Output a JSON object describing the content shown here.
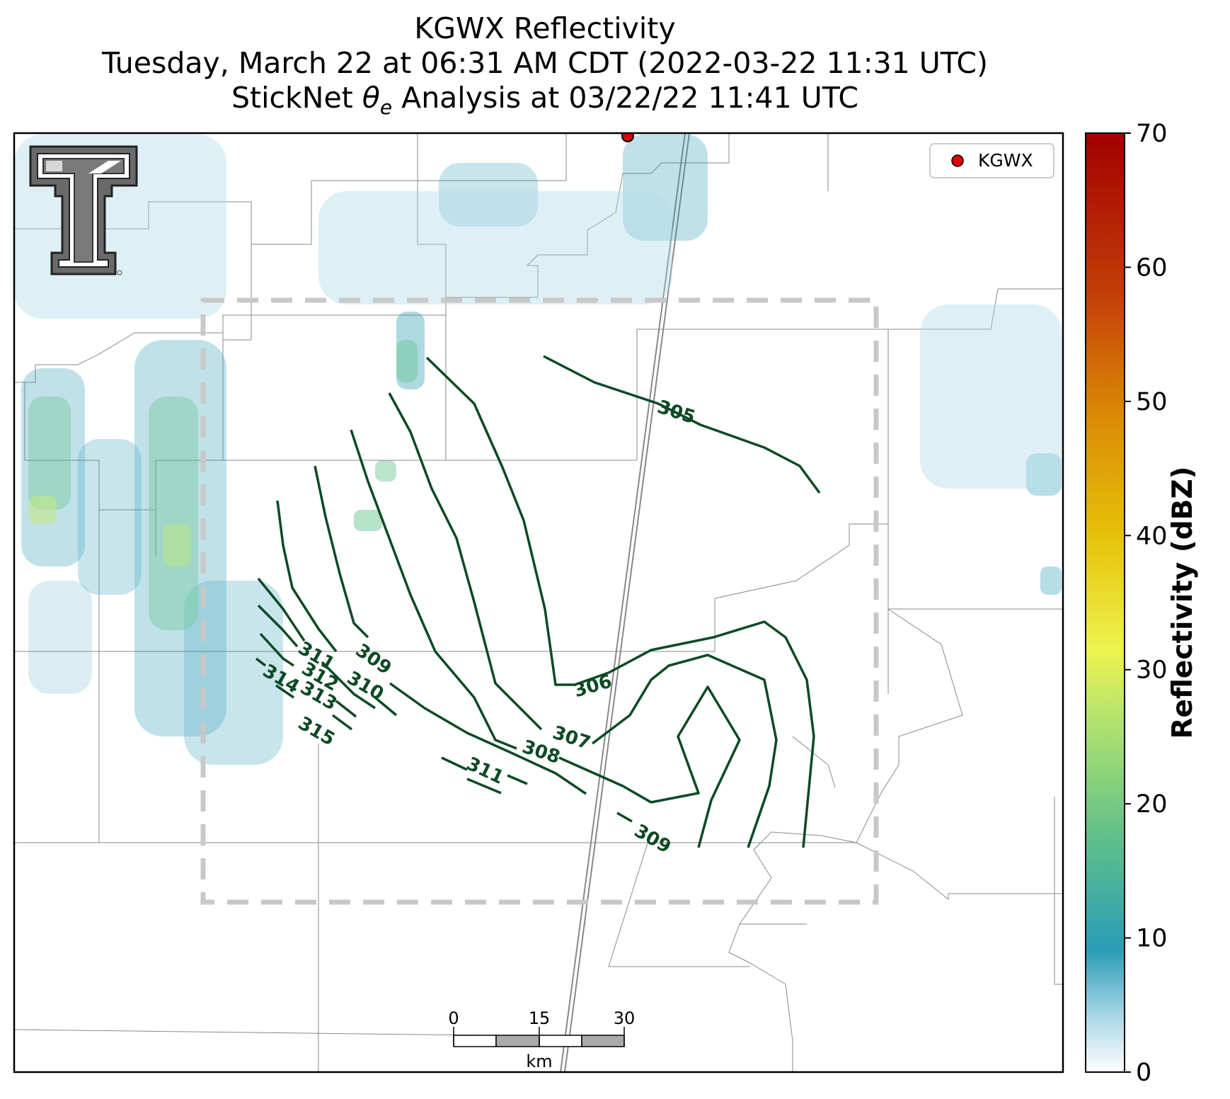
{
  "title": {
    "line1": "KGWX Reflectivity",
    "line2": "Tuesday, March 22 at 06:31 AM CDT (2022-03-22 11:31 UTC)",
    "line3_pre": "StickNet ",
    "line3_theta": "θ",
    "line3_sub": "e",
    "line3_post": " Analysis at 03/22/22 11:41 UTC"
  },
  "legend": {
    "label": "KGWX",
    "marker_color": "#e00000"
  },
  "colorbar": {
    "label": "Reflectivity (dBZ)",
    "ticks": [
      "0",
      "10",
      "20",
      "30",
      "40",
      "50",
      "60",
      "70"
    ],
    "min": 0,
    "max": 70
  },
  "scalebar": {
    "ticks": [
      "0",
      "15",
      "30"
    ],
    "unit": "km"
  },
  "contours": {
    "color": "#0d4a24",
    "labels": [
      "305",
      "306",
      "307",
      "308",
      "309",
      "309",
      "310",
      "311",
      "311",
      "312",
      "313",
      "314",
      "315"
    ]
  },
  "colors": {
    "domain_box": "#c8c8c8",
    "boundaries": "#8a8a8a",
    "highway": "#888888"
  }
}
